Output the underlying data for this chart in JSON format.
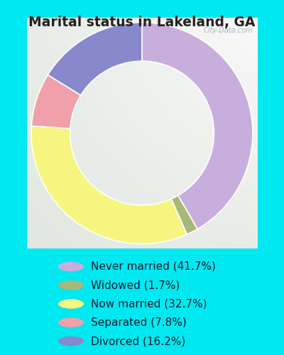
{
  "title": "Marital status in Lakeland, GA",
  "slices": [
    {
      "label": "Never married (41.7%)",
      "value": 41.7,
      "color": "#c8aedd"
    },
    {
      "label": "Widowed (1.7%)",
      "value": 1.7,
      "color": "#a8b87a"
    },
    {
      "label": "Now married (32.7%)",
      "value": 32.7,
      "color": "#f5f580"
    },
    {
      "label": "Separated (7.8%)",
      "value": 7.8,
      "color": "#f0a0a8"
    },
    {
      "label": "Divorced (16.2%)",
      "value": 16.2,
      "color": "#8888cc"
    }
  ],
  "bg_outer": "#00e8f0",
  "bg_chart_color": "#d0edd8",
  "watermark": "City-Data.com",
  "title_fontsize": 13.5,
  "legend_fontsize": 11,
  "title_color": "#222222"
}
